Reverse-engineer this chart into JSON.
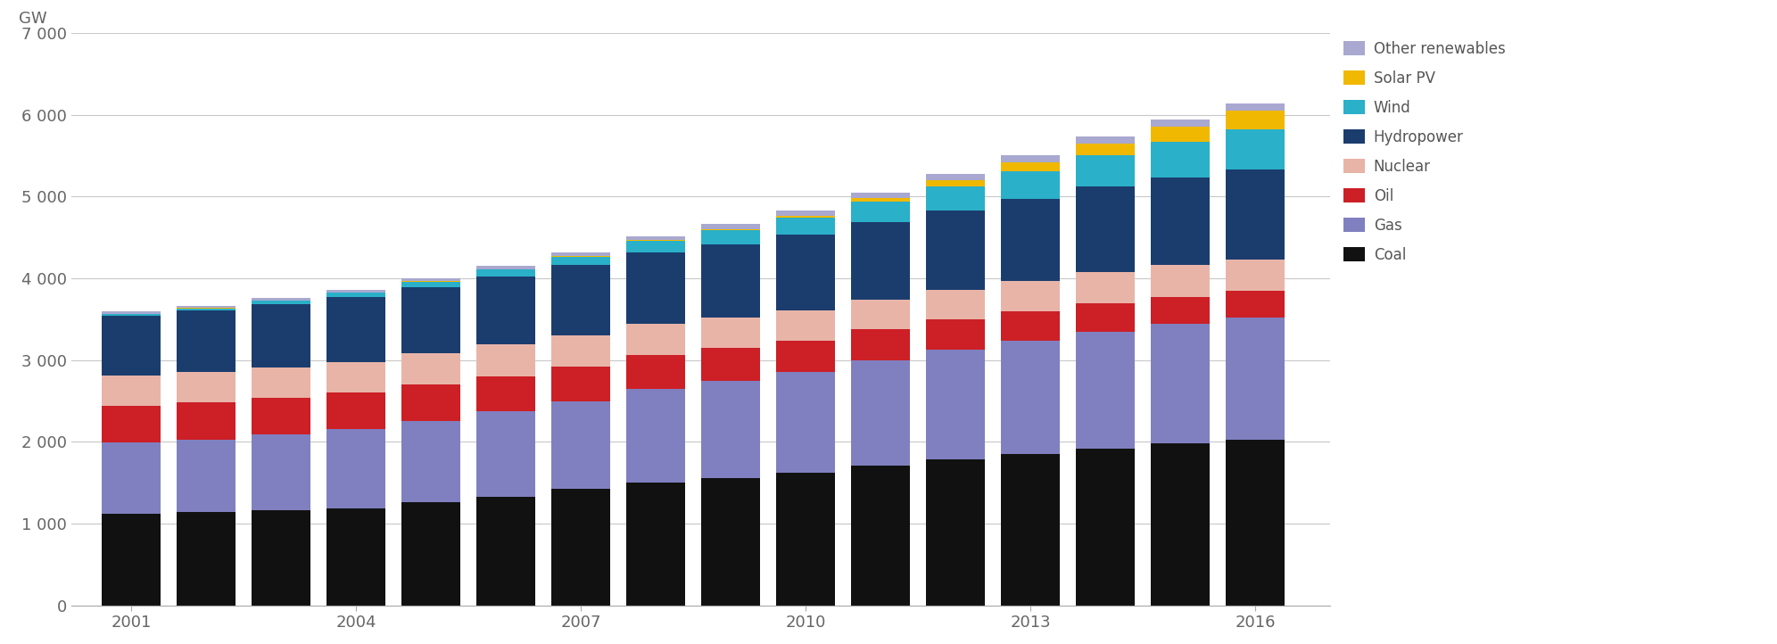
{
  "years": [
    2001,
    2002,
    2003,
    2004,
    2005,
    2006,
    2007,
    2008,
    2009,
    2010,
    2011,
    2012,
    2013,
    2014,
    2015,
    2016
  ],
  "series": {
    "Coal": [
      1120,
      1140,
      1160,
      1190,
      1260,
      1330,
      1420,
      1500,
      1560,
      1620,
      1710,
      1790,
      1850,
      1920,
      1980,
      2030
    ],
    "Gas": [
      870,
      890,
      930,
      970,
      1000,
      1040,
      1070,
      1150,
      1190,
      1230,
      1290,
      1340,
      1390,
      1430,
      1460,
      1490
    ],
    "Oil": [
      450,
      450,
      450,
      445,
      440,
      435,
      430,
      415,
      400,
      385,
      375,
      365,
      355,
      345,
      335,
      325
    ],
    "Nuclear": [
      370,
      375,
      375,
      375,
      380,
      385,
      385,
      380,
      375,
      375,
      365,
      360,
      370,
      380,
      385,
      390
    ],
    "Hydropower": [
      730,
      750,
      770,
      795,
      815,
      835,
      855,
      875,
      895,
      925,
      950,
      980,
      1010,
      1045,
      1075,
      1095
    ],
    "Wind": [
      25,
      30,
      38,
      50,
      65,
      82,
      105,
      135,
      170,
      205,
      250,
      290,
      335,
      385,
      435,
      490
    ],
    "Solar PV": [
      1,
      1,
      2,
      3,
      4,
      5,
      7,
      10,
      15,
      25,
      45,
      80,
      115,
      145,
      185,
      230
    ],
    "Other renewables": [
      28,
      30,
      33,
      36,
      40,
      44,
      48,
      52,
      57,
      62,
      67,
      72,
      77,
      82,
      87,
      92
    ]
  },
  "colors": {
    "Coal": "#111111",
    "Gas": "#8080c0",
    "Oil": "#cc1f26",
    "Nuclear": "#e8b4a8",
    "Hydropower": "#1b3d6e",
    "Wind": "#2ab0c8",
    "Solar PV": "#f0b800",
    "Other renewables": "#a8a8d0"
  },
  "ylabel": "GW",
  "ylim": [
    0,
    7000
  ],
  "yticks": [
    0,
    1000,
    2000,
    3000,
    4000,
    5000,
    6000,
    7000
  ],
  "ytick_labels": [
    "0",
    "1 000",
    "2 000",
    "3 000",
    "4 000",
    "5 000",
    "6 000",
    "7 000"
  ],
  "xtick_years": [
    2001,
    2004,
    2007,
    2010,
    2013,
    2016
  ],
  "background_color": "#ffffff",
  "grid_color": "#c8c8c8",
  "legend_order": [
    "Other renewables",
    "Solar PV",
    "Wind",
    "Hydropower",
    "Nuclear",
    "Oil",
    "Gas",
    "Coal"
  ],
  "bar_width": 0.78,
  "xlim_left": 2000.2,
  "xlim_right": 2017.0
}
